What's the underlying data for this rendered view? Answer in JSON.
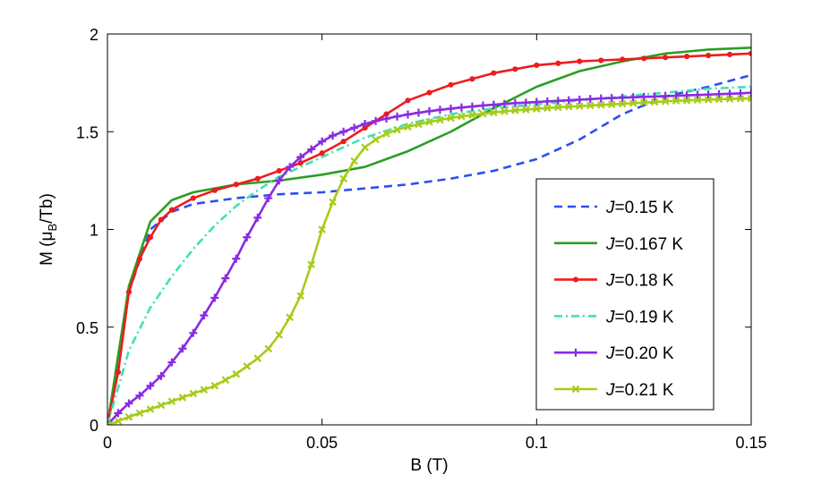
{
  "chart_data": {
    "type": "line",
    "xlabel": "B (T)",
    "ylabel_main": "M (μ",
    "ylabel_sub": "B",
    "ylabel_tail": "/Tb)",
    "xlim": [
      0,
      0.15
    ],
    "ylim": [
      0,
      2
    ],
    "x_ticks": [
      0,
      0.05,
      0.1,
      0.15
    ],
    "x_tick_labels": [
      "0",
      "0.05",
      "0.1",
      "0.15"
    ],
    "y_ticks": [
      0,
      0.5,
      1,
      1.5,
      2
    ],
    "y_tick_labels": [
      "0",
      "0.5",
      "1",
      "1.5",
      "2"
    ],
    "grid": false,
    "legend_position": "lower-right",
    "series": [
      {
        "italic": "J",
        "name": "=0.15 K",
        "color": "#2b4ff0",
        "dash": "dashed",
        "marker": "none",
        "x": [
          0,
          0.005,
          0.01,
          0.015,
          0.02,
          0.03,
          0.04,
          0.05,
          0.06,
          0.07,
          0.08,
          0.09,
          0.1,
          0.11,
          0.12,
          0.13,
          0.14,
          0.15
        ],
        "y": [
          0,
          0.68,
          1.0,
          1.09,
          1.13,
          1.16,
          1.18,
          1.19,
          1.21,
          1.23,
          1.26,
          1.3,
          1.36,
          1.46,
          1.59,
          1.68,
          1.73,
          1.79
        ]
      },
      {
        "italic": "J",
        "name": "=0.167 K",
        "color": "#2b9e22",
        "dash": "solid",
        "marker": "none",
        "x": [
          0,
          0.005,
          0.01,
          0.015,
          0.02,
          0.03,
          0.04,
          0.05,
          0.06,
          0.07,
          0.08,
          0.09,
          0.1,
          0.11,
          0.12,
          0.13,
          0.14,
          0.15
        ],
        "y": [
          0,
          0.71,
          1.04,
          1.15,
          1.19,
          1.23,
          1.25,
          1.28,
          1.32,
          1.4,
          1.5,
          1.62,
          1.73,
          1.81,
          1.86,
          1.9,
          1.92,
          1.93
        ]
      },
      {
        "italic": "J",
        "name": "=0.18 K",
        "color": "#ee1c1c",
        "dash": "solid",
        "marker": "dot",
        "x": [
          0,
          0.0025,
          0.005,
          0.0075,
          0.01,
          0.0125,
          0.015,
          0.02,
          0.025,
          0.03,
          0.035,
          0.04,
          0.045,
          0.05,
          0.055,
          0.06,
          0.065,
          0.07,
          0.075,
          0.08,
          0.085,
          0.09,
          0.095,
          0.1,
          0.105,
          0.11,
          0.115,
          0.12,
          0.125,
          0.13,
          0.135,
          0.14,
          0.145,
          0.15
        ],
        "y": [
          0,
          0.27,
          0.68,
          0.85,
          0.96,
          1.05,
          1.1,
          1.16,
          1.2,
          1.23,
          1.26,
          1.3,
          1.34,
          1.39,
          1.45,
          1.52,
          1.59,
          1.66,
          1.7,
          1.74,
          1.77,
          1.8,
          1.82,
          1.84,
          1.85,
          1.86,
          1.865,
          1.87,
          1.875,
          1.88,
          1.885,
          1.89,
          1.895,
          1.9
        ]
      },
      {
        "italic": "J",
        "name": "=0.19 K",
        "color": "#40e0b8",
        "dash": "dashdot",
        "marker": "none",
        "x": [
          0,
          0.005,
          0.01,
          0.015,
          0.02,
          0.025,
          0.03,
          0.035,
          0.04,
          0.045,
          0.05,
          0.06,
          0.07,
          0.08,
          0.09,
          0.1,
          0.11,
          0.12,
          0.13,
          0.14,
          0.15
        ],
        "y": [
          0,
          0.38,
          0.6,
          0.76,
          0.9,
          1.02,
          1.12,
          1.2,
          1.27,
          1.32,
          1.37,
          1.47,
          1.54,
          1.59,
          1.62,
          1.64,
          1.66,
          1.68,
          1.7,
          1.72,
          1.73
        ]
      },
      {
        "italic": "J",
        "name": "=0.20 K",
        "color": "#8a2be2",
        "dash": "solid",
        "marker": "plus",
        "x": [
          0,
          0.0025,
          0.005,
          0.0075,
          0.01,
          0.0125,
          0.015,
          0.0175,
          0.02,
          0.0225,
          0.025,
          0.0275,
          0.03,
          0.0325,
          0.035,
          0.0375,
          0.04,
          0.0425,
          0.045,
          0.0475,
          0.05,
          0.0525,
          0.055,
          0.0575,
          0.06,
          0.0625,
          0.065,
          0.0675,
          0.07,
          0.0725,
          0.075,
          0.0775,
          0.08,
          0.0825,
          0.085,
          0.0875,
          0.09,
          0.0925,
          0.095,
          0.0975,
          0.1,
          0.1025,
          0.105,
          0.1075,
          0.11,
          0.1125,
          0.115,
          0.1175,
          0.12,
          0.1225,
          0.125,
          0.1275,
          0.13,
          0.1325,
          0.135,
          0.1375,
          0.14,
          0.1425,
          0.145,
          0.1475,
          0.15
        ],
        "y": [
          0,
          0.06,
          0.11,
          0.15,
          0.2,
          0.25,
          0.32,
          0.39,
          0.47,
          0.56,
          0.65,
          0.75,
          0.85,
          0.96,
          1.06,
          1.16,
          1.25,
          1.32,
          1.37,
          1.41,
          1.45,
          1.48,
          1.5,
          1.52,
          1.54,
          1.555,
          1.567,
          1.578,
          1.588,
          1.597,
          1.605,
          1.612,
          1.618,
          1.624,
          1.629,
          1.634,
          1.638,
          1.642,
          1.646,
          1.649,
          1.652,
          1.655,
          1.658,
          1.661,
          1.664,
          1.667,
          1.67,
          1.672,
          1.674,
          1.676,
          1.678,
          1.68,
          1.682,
          1.684,
          1.686,
          1.688,
          1.69,
          1.692,
          1.694,
          1.696,
          1.7
        ]
      },
      {
        "italic": "J",
        "name": "=0.21 K",
        "color": "#a6cc1a",
        "dash": "solid",
        "marker": "x",
        "x": [
          0,
          0.0025,
          0.005,
          0.0075,
          0.01,
          0.0125,
          0.015,
          0.0175,
          0.02,
          0.0225,
          0.025,
          0.0275,
          0.03,
          0.0325,
          0.035,
          0.0375,
          0.04,
          0.0425,
          0.045,
          0.0475,
          0.05,
          0.0525,
          0.055,
          0.0575,
          0.06,
          0.0625,
          0.065,
          0.0675,
          0.07,
          0.0725,
          0.075,
          0.0775,
          0.08,
          0.0825,
          0.085,
          0.0875,
          0.09,
          0.0925,
          0.095,
          0.0975,
          0.1,
          0.1025,
          0.105,
          0.1075,
          0.11,
          0.1125,
          0.115,
          0.1175,
          0.12,
          0.1225,
          0.125,
          0.1275,
          0.13,
          0.1325,
          0.135,
          0.1375,
          0.14,
          0.1425,
          0.145,
          0.1475,
          0.15
        ],
        "y": [
          0,
          0.02,
          0.04,
          0.06,
          0.08,
          0.1,
          0.12,
          0.14,
          0.16,
          0.18,
          0.2,
          0.23,
          0.26,
          0.3,
          0.34,
          0.39,
          0.46,
          0.55,
          0.66,
          0.82,
          1.0,
          1.14,
          1.26,
          1.35,
          1.42,
          1.46,
          1.49,
          1.51,
          1.525,
          1.538,
          1.55,
          1.56,
          1.57,
          1.578,
          1.585,
          1.592,
          1.598,
          1.604,
          1.609,
          1.613,
          1.617,
          1.621,
          1.625,
          1.628,
          1.631,
          1.634,
          1.637,
          1.64,
          1.643,
          1.646,
          1.649,
          1.652,
          1.655,
          1.658,
          1.66,
          1.662,
          1.664,
          1.666,
          1.668,
          1.669,
          1.67
        ]
      }
    ]
  }
}
